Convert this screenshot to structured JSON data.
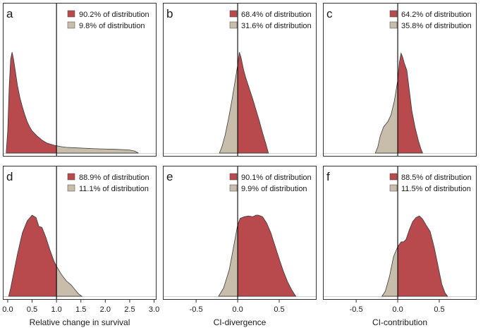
{
  "chart_data": {
    "type": "density-panel-grid",
    "colors": {
      "main": "#b84a4e",
      "other": "#c8bcaa",
      "vline": "#000000",
      "frame": "#333333"
    },
    "panels": [
      {
        "letter": "a",
        "xlim": [
          -0.1,
          3.05
        ],
        "split": 1.0,
        "main_side": "left",
        "legend": [
          "90.2% of distribution",
          "9.8% of distribution"
        ],
        "density": [
          [
            -0.03,
            0.01
          ],
          [
            0.0,
            0.22
          ],
          [
            0.03,
            0.65
          ],
          [
            0.06,
            0.93
          ],
          [
            0.09,
            1.0
          ],
          [
            0.12,
            0.93
          ],
          [
            0.16,
            0.8
          ],
          [
            0.2,
            0.67
          ],
          [
            0.25,
            0.55
          ],
          [
            0.3,
            0.46
          ],
          [
            0.35,
            0.38
          ],
          [
            0.4,
            0.31
          ],
          [
            0.45,
            0.26
          ],
          [
            0.5,
            0.22
          ],
          [
            0.6,
            0.17
          ],
          [
            0.7,
            0.13
          ],
          [
            0.8,
            0.1
          ],
          [
            0.9,
            0.085
          ],
          [
            1.0,
            0.072
          ],
          [
            1.1,
            0.063
          ],
          [
            1.2,
            0.057
          ],
          [
            1.4,
            0.052
          ],
          [
            1.6,
            0.047
          ],
          [
            1.8,
            0.043
          ],
          [
            2.0,
            0.04
          ],
          [
            2.2,
            0.037
          ],
          [
            2.4,
            0.033
          ],
          [
            2.5,
            0.03
          ],
          [
            2.6,
            0.02
          ],
          [
            2.68,
            0.0
          ]
        ]
      },
      {
        "letter": "b",
        "xlim": [
          -0.9,
          0.95
        ],
        "split": 0.0,
        "main_side": "right",
        "legend": [
          "68.4% of distribution",
          "31.6% of distribution"
        ],
        "density": [
          [
            -0.22,
            0.0
          ],
          [
            -0.19,
            0.06
          ],
          [
            -0.15,
            0.18
          ],
          [
            -0.11,
            0.34
          ],
          [
            -0.07,
            0.52
          ],
          [
            -0.03,
            0.72
          ],
          [
            0.0,
            0.87
          ],
          [
            0.02,
            1.0
          ],
          [
            0.04,
            0.95
          ],
          [
            0.07,
            0.83
          ],
          [
            0.1,
            0.74
          ],
          [
            0.14,
            0.64
          ],
          [
            0.18,
            0.54
          ],
          [
            0.22,
            0.43
          ],
          [
            0.26,
            0.32
          ],
          [
            0.3,
            0.2
          ],
          [
            0.34,
            0.09
          ],
          [
            0.37,
            0.0
          ]
        ]
      },
      {
        "letter": "c",
        "xlim": [
          -0.9,
          0.95
        ],
        "split": 0.0,
        "main_side": "right",
        "legend": [
          "64.2% of distribution",
          "35.8% of distribution"
        ],
        "density": [
          [
            -0.27,
            0.0
          ],
          [
            -0.24,
            0.06
          ],
          [
            -0.21,
            0.17
          ],
          [
            -0.17,
            0.26
          ],
          [
            -0.12,
            0.31
          ],
          [
            -0.08,
            0.38
          ],
          [
            -0.04,
            0.52
          ],
          [
            0.0,
            0.72
          ],
          [
            0.02,
            0.9
          ],
          [
            0.04,
            0.99
          ],
          [
            0.06,
            0.95
          ],
          [
            0.08,
            0.89
          ],
          [
            0.11,
            0.82
          ],
          [
            0.14,
            0.62
          ],
          [
            0.17,
            0.42
          ],
          [
            0.21,
            0.25
          ],
          [
            0.25,
            0.12
          ],
          [
            0.28,
            0.04
          ],
          [
            0.3,
            0.0
          ]
        ]
      },
      {
        "letter": "d",
        "xlim": [
          -0.1,
          3.05
        ],
        "split": 1.0,
        "main_side": "left",
        "legend": [
          "88.9% of distribution",
          "11.1% of distribution"
        ],
        "density": [
          [
            0.02,
            0.0
          ],
          [
            0.06,
            0.1
          ],
          [
            0.12,
            0.28
          ],
          [
            0.2,
            0.52
          ],
          [
            0.3,
            0.78
          ],
          [
            0.4,
            0.93
          ],
          [
            0.5,
            1.0
          ],
          [
            0.58,
            0.97
          ],
          [
            0.64,
            0.86
          ],
          [
            0.7,
            0.85
          ],
          [
            0.78,
            0.73
          ],
          [
            0.86,
            0.58
          ],
          [
            0.95,
            0.43
          ],
          [
            1.0,
            0.37
          ],
          [
            1.1,
            0.27
          ],
          [
            1.2,
            0.19
          ],
          [
            1.3,
            0.14
          ],
          [
            1.38,
            0.08
          ],
          [
            1.45,
            0.03
          ],
          [
            1.52,
            0.0
          ]
        ]
      },
      {
        "letter": "e",
        "xlim": [
          -0.9,
          0.95
        ],
        "split": 0.0,
        "main_side": "right",
        "legend": [
          "90.1% of distribution",
          "9.9% of distribution"
        ],
        "density": [
          [
            -0.23,
            0.0
          ],
          [
            -0.17,
            0.1
          ],
          [
            -0.1,
            0.33
          ],
          [
            -0.04,
            0.66
          ],
          [
            0.0,
            0.88
          ],
          [
            0.03,
            0.96
          ],
          [
            0.08,
            0.98
          ],
          [
            0.13,
            0.99
          ],
          [
            0.18,
            0.98
          ],
          [
            0.22,
            1.0
          ],
          [
            0.25,
            1.0
          ],
          [
            0.3,
            0.98
          ],
          [
            0.35,
            0.9
          ],
          [
            0.4,
            0.78
          ],
          [
            0.45,
            0.62
          ],
          [
            0.5,
            0.46
          ],
          [
            0.55,
            0.31
          ],
          [
            0.6,
            0.18
          ],
          [
            0.65,
            0.08
          ],
          [
            0.7,
            0.0
          ]
        ]
      },
      {
        "letter": "f",
        "xlim": [
          -0.9,
          0.95
        ],
        "split": 0.0,
        "main_side": "right",
        "legend": [
          "88.5% of distribution",
          "11.5% of distribution"
        ],
        "density": [
          [
            -0.19,
            0.0
          ],
          [
            -0.15,
            0.06
          ],
          [
            -0.1,
            0.24
          ],
          [
            -0.05,
            0.49
          ],
          [
            0.0,
            0.61
          ],
          [
            0.02,
            0.64
          ],
          [
            0.04,
            0.67
          ],
          [
            0.07,
            0.67
          ],
          [
            0.1,
            0.7
          ],
          [
            0.14,
            0.82
          ],
          [
            0.18,
            0.92
          ],
          [
            0.22,
            0.97
          ],
          [
            0.26,
            0.99
          ],
          [
            0.3,
            0.95
          ],
          [
            0.34,
            0.88
          ],
          [
            0.39,
            0.8
          ],
          [
            0.44,
            0.6
          ],
          [
            0.49,
            0.35
          ],
          [
            0.53,
            0.15
          ],
          [
            0.57,
            0.04
          ],
          [
            0.6,
            0.0
          ]
        ]
      }
    ],
    "columns": [
      {
        "xlabel": "Relative change in survival",
        "ticks": [
          0.0,
          0.5,
          1.0,
          1.5,
          2.0,
          2.5,
          3.0
        ],
        "tick_labels": [
          "0.0",
          "0.5",
          "1.0",
          "1.5",
          "2.0",
          "2.5",
          "3.0"
        ]
      },
      {
        "xlabel": "CI-divergence",
        "ticks": [
          -0.5,
          0.0,
          0.5
        ],
        "tick_labels": [
          "-0.5",
          "0.0",
          "0.5"
        ]
      },
      {
        "xlabel": "CI-contribution",
        "ticks": [
          -0.5,
          0.0,
          0.5
        ],
        "tick_labels": [
          "-0.5",
          "0.0",
          "0.5"
        ]
      }
    ]
  }
}
